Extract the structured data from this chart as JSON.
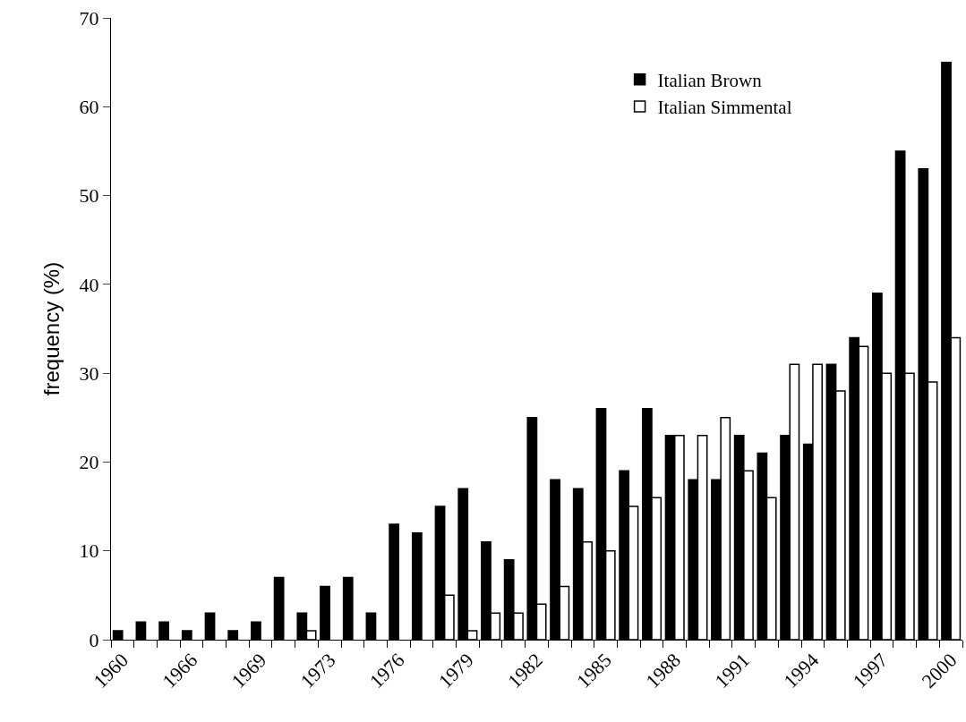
{
  "chart_data": {
    "type": "bar",
    "ylabel": "frequency (%)",
    "categories": [
      "1960",
      null,
      null,
      "1966",
      null,
      null,
      "1969",
      null,
      null,
      "1973",
      null,
      null,
      "1976",
      null,
      null,
      "1979",
      null,
      null,
      "1982",
      null,
      null,
      "1985",
      null,
      null,
      "1988",
      null,
      null,
      "1991",
      null,
      null,
      "1994",
      null,
      null,
      "1997",
      null,
      null,
      "2000"
    ],
    "series": [
      {
        "name": "Italian Brown",
        "color": "#000000",
        "values": [
          1,
          2,
          2,
          1,
          3,
          1,
          2,
          7,
          3,
          6,
          7,
          3,
          13,
          12,
          15,
          17,
          11,
          9,
          25,
          18,
          17,
          26,
          19,
          26,
          23,
          18,
          18,
          23,
          21,
          23,
          22,
          31,
          34,
          39,
          55,
          53,
          65
        ]
      },
      {
        "name": "Italian Simmental",
        "color": "#ffffff",
        "values": [
          null,
          null,
          null,
          null,
          null,
          null,
          null,
          null,
          1,
          null,
          null,
          null,
          null,
          null,
          5,
          1,
          3,
          3,
          4,
          6,
          11,
          10,
          15,
          16,
          23,
          23,
          25,
          19,
          16,
          31,
          31,
          28,
          33,
          30,
          30,
          29,
          34
        ]
      }
    ],
    "ylim": [
      0,
      70
    ],
    "yticks": [
      0,
      10,
      20,
      30,
      40,
      50,
      60,
      70
    ],
    "legend": "top right"
  }
}
